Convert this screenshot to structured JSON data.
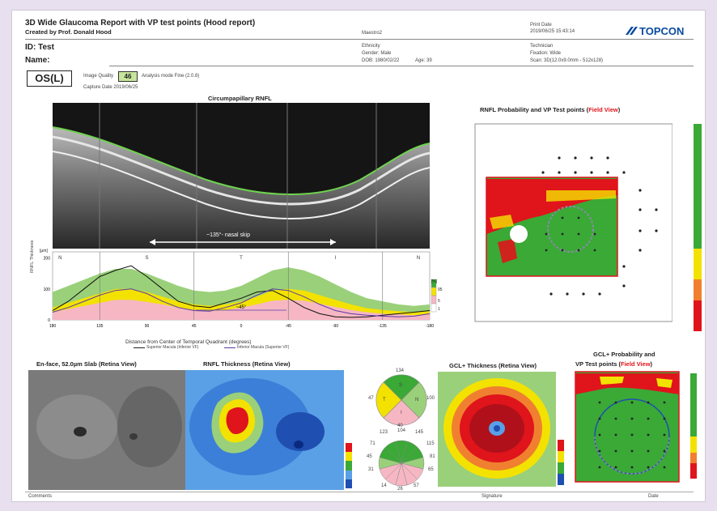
{
  "header": {
    "title": "3D Wide Glaucoma Report with VP test points (Hood report)",
    "created_by": "Created by Prof. Donald Hood",
    "software": "Maestro2",
    "print_date_label": "Print Date",
    "print_date": "2019/06/25 15:43:14",
    "brand": "TOPCON"
  },
  "patient": {
    "id": "ID: Test",
    "name": "Name:",
    "ethnicity": "Ethnicity",
    "gender": "Gender: Male",
    "dob": "DOB: 1980/02/22",
    "age": "Age: 39",
    "technician": "Technician",
    "fixation": "Fixation: Wide",
    "scan": "Scan: 3D(12.0x9.0mm - 512x128)"
  },
  "exam": {
    "eye": "OS(L)",
    "image_quality_label": "Image Quality",
    "image_quality": "46",
    "analysis_mode": "Analysis mode Fine (2.0.8)",
    "capture_date": "Capture Date 2019/06/25"
  },
  "rnfl_section": {
    "title": "Circumpapillary RNFL",
    "nasal_skip": "~135°- nasal skip",
    "quadrants": [
      "N",
      "S",
      "T",
      "I",
      "N"
    ],
    "degree_label": "~45°",
    "y_axis_label": "RNFL Thickness",
    "y_unit": "[µm]",
    "x_axis_label": "Distance from Center of Temporal Quadrant (degrees)",
    "legend_superior": "Superior Macula (Inferior VF)",
    "legend_inferior": "Inferior Macula (Superior VF)",
    "legend_percent_1": "[%]",
    "legend_percent_2": "95",
    "legend_percent_3": "5",
    "legend_percent_4": "1"
  },
  "probability_map": {
    "title_main": "RNFL Probability and VP Test points (",
    "title_field": "Field View",
    "title_end": ")"
  },
  "bottom_panels": {
    "enface_title": "En-face, 52.0µm Slab (Retina View)",
    "rnfl_thickness_title": "RNFL Thickness (Retina View)",
    "gcl_thickness_title": "GCL+ Thickness (Retina View)",
    "gcl_prob_title_1": "GCL+ Probability and",
    "gcl_prob_title_2": "VP Test points (",
    "gcl_prob_title_field": "Field View",
    "gcl_prob_title_end": ")"
  },
  "quadrant_chart": {
    "top": "134",
    "left": "47",
    "right": "100",
    "bottom": "40",
    "t_label": "T",
    "n_label": "N",
    "s_label": "S",
    "i_label": "I"
  },
  "clock_chart": {
    "values": [
      "123",
      "104",
      "145",
      "71",
      "115",
      "45",
      "81",
      "31",
      "65",
      "14",
      "26",
      "57"
    ]
  },
  "footer": {
    "comments": "Comments",
    "signature": "Signature",
    "date": "Date"
  },
  "colors": {
    "green": "#3aa936",
    "yellow": "#f3e200",
    "red": "#e0141b",
    "pink": "#f6b7c3",
    "light_green": "#9ad07a",
    "accent_red": "#e0141b"
  },
  "rnfl_chart": {
    "type": "line",
    "x": [
      -180,
      -165,
      -150,
      -135,
      -120,
      -105,
      -90,
      -75,
      -60,
      -45,
      -30,
      -15,
      0,
      15,
      30,
      45,
      60,
      75,
      90,
      105,
      120,
      135,
      150,
      165,
      180
    ],
    "xticks": [
      "180",
      "135",
      "90",
      "45",
      "0",
      "-45",
      "-90",
      "-135",
      "-180"
    ],
    "yticks": [
      "0",
      "100",
      "200"
    ],
    "ylim": [
      0,
      220
    ],
    "green_band": [
      90,
      110,
      130,
      150,
      165,
      165,
      150,
      130,
      110,
      95,
      90,
      95,
      110,
      135,
      160,
      170,
      160,
      140,
      115,
      90,
      70,
      60,
      50,
      45,
      50
    ],
    "yellow_band": [
      40,
      55,
      70,
      85,
      100,
      100,
      90,
      75,
      60,
      50,
      45,
      50,
      60,
      75,
      95,
      100,
      95,
      80,
      65,
      50,
      38,
      32,
      28,
      25,
      28
    ],
    "pink_band": [
      25,
      35,
      45,
      55,
      65,
      65,
      58,
      50,
      40,
      32,
      28,
      32,
      40,
      50,
      62,
      65,
      62,
      52,
      42,
      32,
      25,
      20,
      18,
      15,
      18
    ],
    "series": [
      {
        "name": "Superior Macula (Inferior VF)",
        "values": [
          30,
          60,
          100,
          140,
          160,
          175,
          140,
          100,
          60,
          45,
          40,
          55,
          70,
          90,
          95,
          70,
          40,
          20,
          10,
          8,
          10,
          15,
          20,
          25,
          30
        ]
      },
      {
        "name": "Inferior Macula (Superior VF)",
        "values": [
          25,
          40,
          60,
          80,
          95,
          100,
          85,
          60,
          40,
          30,
          28,
          40,
          55,
          80,
          100,
          95,
          75,
          50,
          30,
          20,
          15,
          12,
          10,
          12,
          20
        ]
      }
    ]
  }
}
